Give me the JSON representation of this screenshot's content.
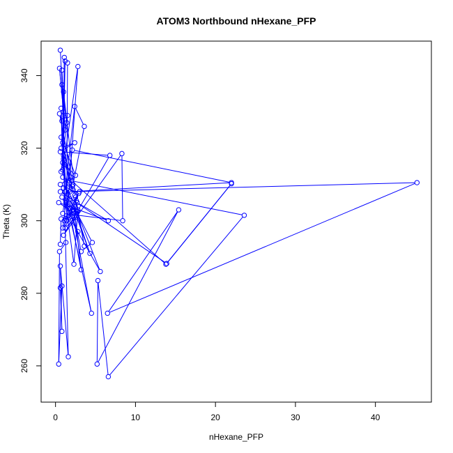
{
  "chart_data": {
    "type": "scatter",
    "mode": "lines+markers",
    "title": "ATOM3 Northbound nHexane_PFP",
    "xlabel": "nHexane_PFP",
    "ylabel": "Theta (K)",
    "xlim": [
      -1.8,
      47.0
    ],
    "ylim": [
      250.0,
      349.5
    ],
    "xticks": [
      0,
      10,
      20,
      30,
      40
    ],
    "yticks": [
      260,
      280,
      300,
      320,
      340
    ],
    "grid": false,
    "color": "#0000ff",
    "points": [
      {
        "x": 0.6,
        "y": 347.0
      },
      {
        "x": 1.0,
        "y": 330.0
      },
      {
        "x": 0.5,
        "y": 342.0
      },
      {
        "x": 1.2,
        "y": 325.0
      },
      {
        "x": 0.8,
        "y": 341.5
      },
      {
        "x": 1.0,
        "y": 318.0
      },
      {
        "x": 1.1,
        "y": 345.0
      },
      {
        "x": 0.9,
        "y": 312.0
      },
      {
        "x": 1.2,
        "y": 344.0
      },
      {
        "x": 1.5,
        "y": 343.5
      },
      {
        "x": 1.4,
        "y": 300.0
      },
      {
        "x": 2.8,
        "y": 342.5
      },
      {
        "x": 0.9,
        "y": 314.0
      },
      {
        "x": 0.7,
        "y": 331.0
      },
      {
        "x": 1.2,
        "y": 308.0
      },
      {
        "x": 2.4,
        "y": 331.5
      },
      {
        "x": 3.6,
        "y": 326.0
      },
      {
        "x": 2.2,
        "y": 310.0
      },
      {
        "x": 0.5,
        "y": 329.5
      },
      {
        "x": 0.8,
        "y": 327.5
      },
      {
        "x": 1.5,
        "y": 329.0
      },
      {
        "x": 0.7,
        "y": 320.0
      },
      {
        "x": 2.4,
        "y": 321.5
      },
      {
        "x": 0.6,
        "y": 319.0
      },
      {
        "x": 6.8,
        "y": 318.0
      },
      {
        "x": 1.0,
        "y": 296.0
      },
      {
        "x": 8.3,
        "y": 318.5
      },
      {
        "x": 8.4,
        "y": 300.0
      },
      {
        "x": 0.9,
        "y": 302.0
      },
      {
        "x": 2.1,
        "y": 319.5
      },
      {
        "x": 22.0,
        "y": 310.5
      },
      {
        "x": 1.8,
        "y": 308.0
      },
      {
        "x": 45.2,
        "y": 310.5
      },
      {
        "x": 6.5,
        "y": 274.5
      },
      {
        "x": 15.4,
        "y": 303.0
      },
      {
        "x": 5.2,
        "y": 260.5
      },
      {
        "x": 5.3,
        "y": 283.5
      },
      {
        "x": 6.6,
        "y": 257.0
      },
      {
        "x": 23.6,
        "y": 301.5
      },
      {
        "x": 2.0,
        "y": 311.0
      },
      {
        "x": 13.8,
        "y": 288.0
      },
      {
        "x": 22.0,
        "y": 310.2
      },
      {
        "x": 13.9,
        "y": 288.2
      },
      {
        "x": 0.6,
        "y": 308.0
      },
      {
        "x": 2.7,
        "y": 305.0
      },
      {
        "x": 6.6,
        "y": 300.0
      },
      {
        "x": 0.4,
        "y": 305.0
      },
      {
        "x": 2.3,
        "y": 302.0
      },
      {
        "x": 3.2,
        "y": 291.5
      },
      {
        "x": 4.6,
        "y": 294.0
      },
      {
        "x": 1.8,
        "y": 306.0
      },
      {
        "x": 4.3,
        "y": 291.0
      },
      {
        "x": 2.3,
        "y": 304.0
      },
      {
        "x": 3.2,
        "y": 286.5
      },
      {
        "x": 2.0,
        "y": 300.0
      },
      {
        "x": 5.6,
        "y": 286.0
      },
      {
        "x": 1.5,
        "y": 309.0
      },
      {
        "x": 4.5,
        "y": 274.5
      },
      {
        "x": 1.0,
        "y": 309.0
      },
      {
        "x": 2.3,
        "y": 288.0
      },
      {
        "x": 2.8,
        "y": 303.0
      },
      {
        "x": 0.7,
        "y": 300.5
      },
      {
        "x": 0.6,
        "y": 293.5
      },
      {
        "x": 1.3,
        "y": 294.0
      },
      {
        "x": 0.5,
        "y": 291.5
      },
      {
        "x": 0.4,
        "y": 260.5
      },
      {
        "x": 0.8,
        "y": 282.0
      },
      {
        "x": 0.6,
        "y": 281.5
      },
      {
        "x": 0.8,
        "y": 269.5
      },
      {
        "x": 0.6,
        "y": 287.5
      },
      {
        "x": 1.6,
        "y": 262.5
      },
      {
        "x": 1.0,
        "y": 317.0
      },
      {
        "x": 2.4,
        "y": 307.0
      },
      {
        "x": 3.6,
        "y": 293.0
      },
      {
        "x": 2.6,
        "y": 305.5
      },
      {
        "x": 0.9,
        "y": 298.0
      },
      {
        "x": 1.3,
        "y": 305.0
      },
      {
        "x": 2.1,
        "y": 309.5
      },
      {
        "x": 0.7,
        "y": 323.0
      },
      {
        "x": 2.5,
        "y": 312.5
      },
      {
        "x": 1.1,
        "y": 315.5
      },
      {
        "x": 1.9,
        "y": 312.0
      },
      {
        "x": 0.6,
        "y": 310.0
      },
      {
        "x": 2.9,
        "y": 307.5
      },
      {
        "x": 1.2,
        "y": 298.0
      },
      {
        "x": 2.6,
        "y": 301.0
      },
      {
        "x": 0.8,
        "y": 306.5
      },
      {
        "x": 2.8,
        "y": 297.0
      },
      {
        "x": 1.5,
        "y": 304.0
      },
      {
        "x": 0.9,
        "y": 321.5
      },
      {
        "x": 1.7,
        "y": 310.5
      },
      {
        "x": 2.2,
        "y": 308.5
      },
      {
        "x": 0.7,
        "y": 313.5
      },
      {
        "x": 1.4,
        "y": 327.0
      },
      {
        "x": 0.8,
        "y": 337.5
      },
      {
        "x": 1.0,
        "y": 335.5
      },
      {
        "x": 2.5,
        "y": 306.5
      },
      {
        "x": 3.0,
        "y": 308.0
      },
      {
        "x": 1.1,
        "y": 300.0
      },
      {
        "x": 2.7,
        "y": 302.5
      },
      {
        "x": 1.8,
        "y": 303.5
      },
      {
        "x": 0.9,
        "y": 316.0
      }
    ]
  }
}
